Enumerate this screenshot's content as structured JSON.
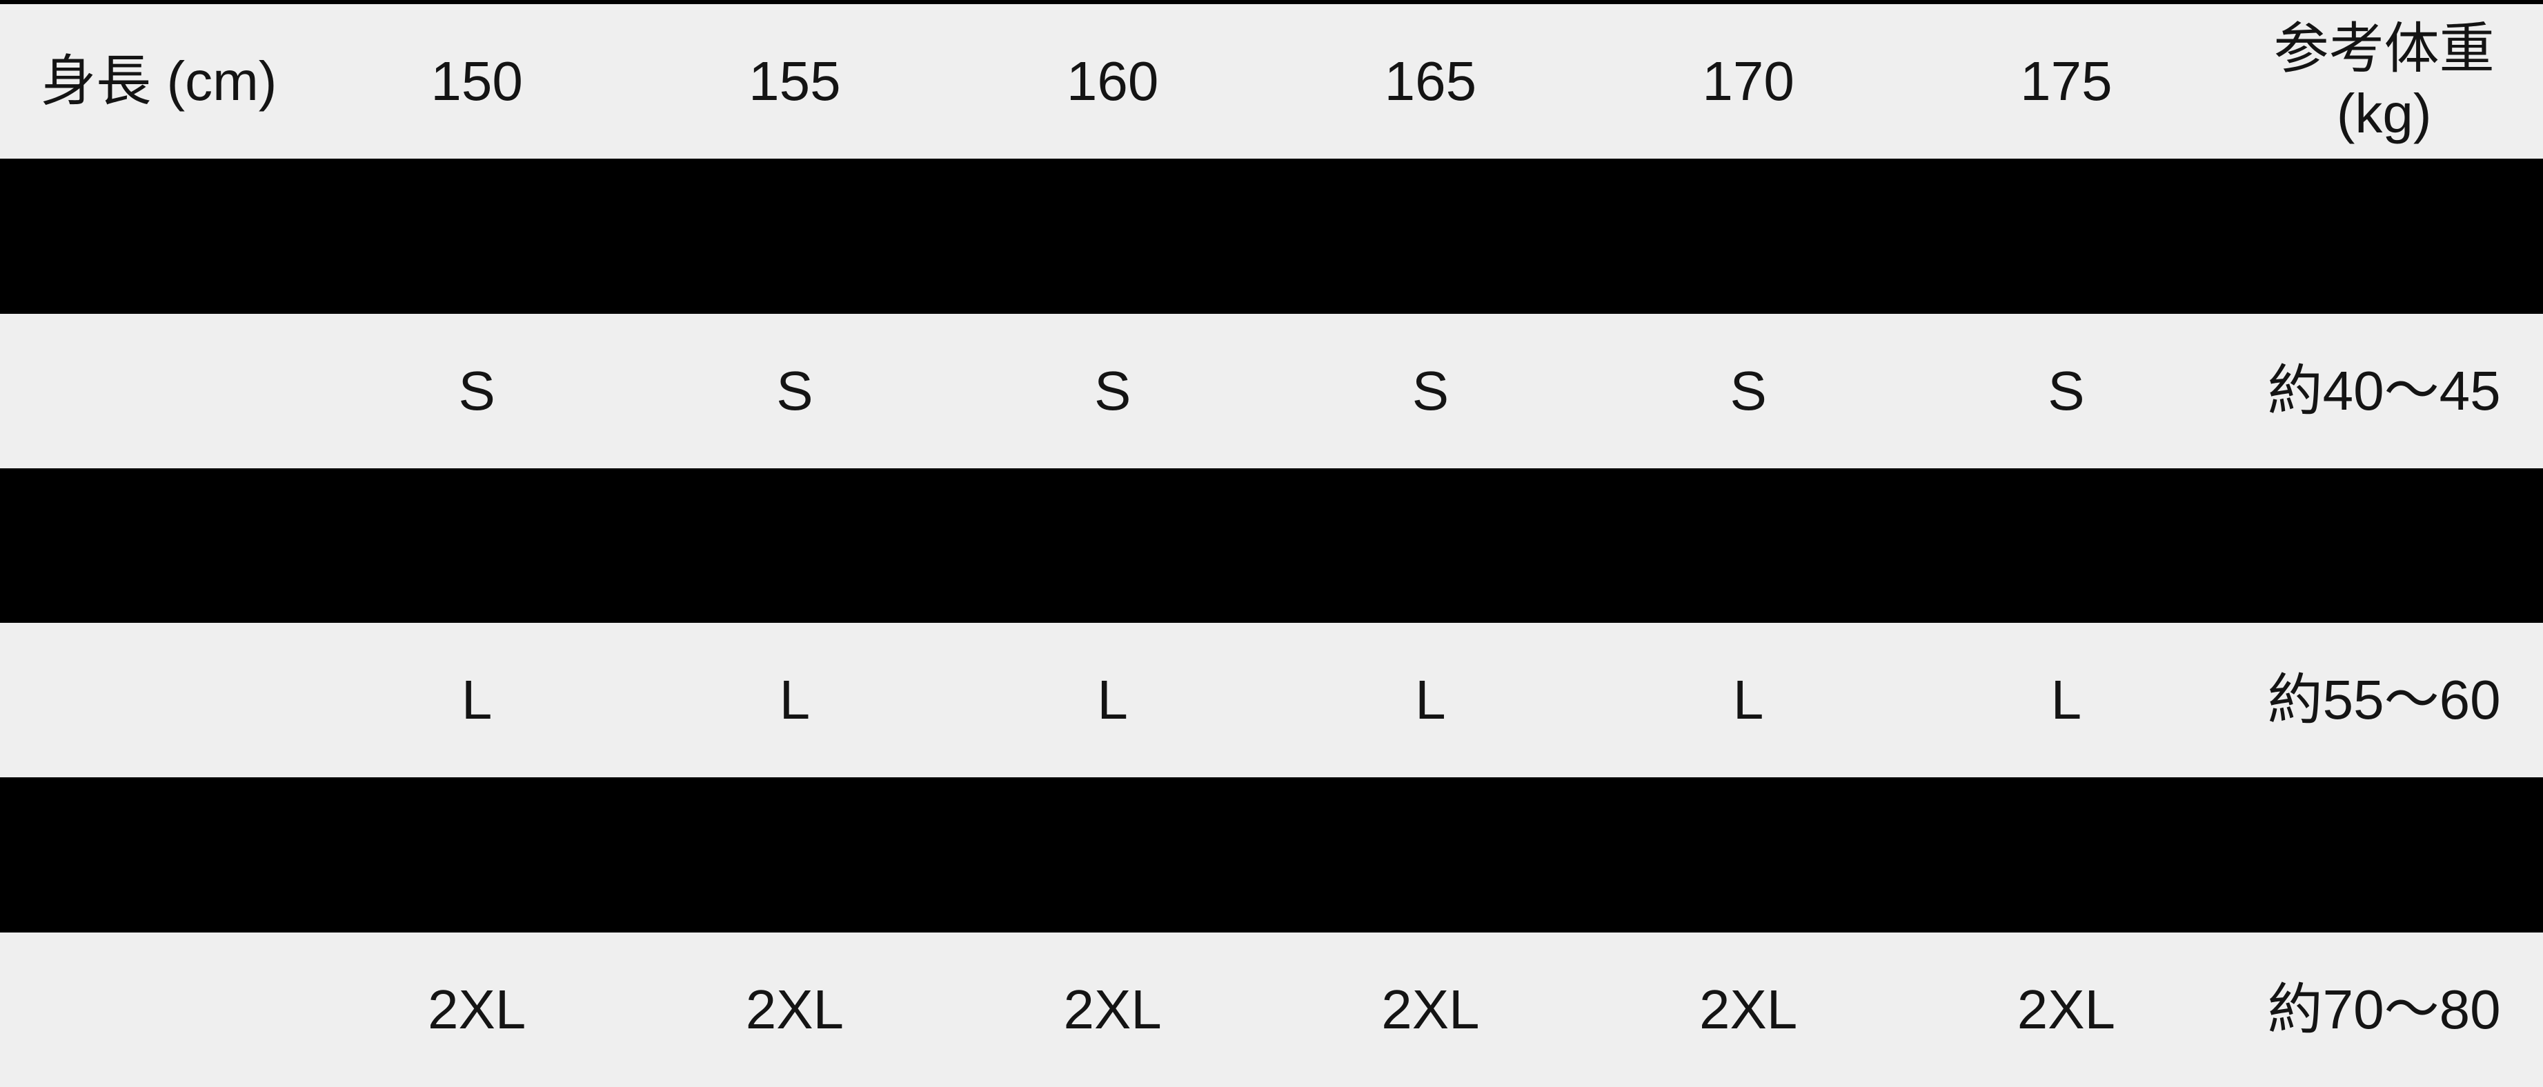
{
  "colors": {
    "row_background": "#efefef",
    "redaction_bar": "#000000",
    "top_border": "#000000",
    "text": "#141414"
  },
  "chart_data": {
    "type": "table",
    "title": "",
    "columns": [
      "身長 (cm)",
      "150",
      "155",
      "160",
      "165",
      "170",
      "175",
      "参考体重\n(kg)"
    ],
    "rows": [
      {
        "redacted": true,
        "cells": [
          "",
          "",
          "",
          "",
          "",
          "",
          "",
          ""
        ]
      },
      {
        "redacted": false,
        "cells": [
          "",
          "S",
          "S",
          "S",
          "S",
          "S",
          "S",
          "約40〜45"
        ]
      },
      {
        "redacted": true,
        "cells": [
          "",
          "",
          "",
          "",
          "",
          "",
          "",
          ""
        ]
      },
      {
        "redacted": false,
        "cells": [
          "",
          "L",
          "L",
          "L",
          "L",
          "L",
          "L",
          "約55〜60"
        ]
      },
      {
        "redacted": true,
        "cells": [
          "",
          "",
          "",
          "",
          "",
          "",
          "",
          ""
        ]
      },
      {
        "redacted": false,
        "cells": [
          "",
          "2XL",
          "2XL",
          "2XL",
          "2XL",
          "2XL",
          "2XL",
          "約70〜80"
        ]
      }
    ]
  }
}
